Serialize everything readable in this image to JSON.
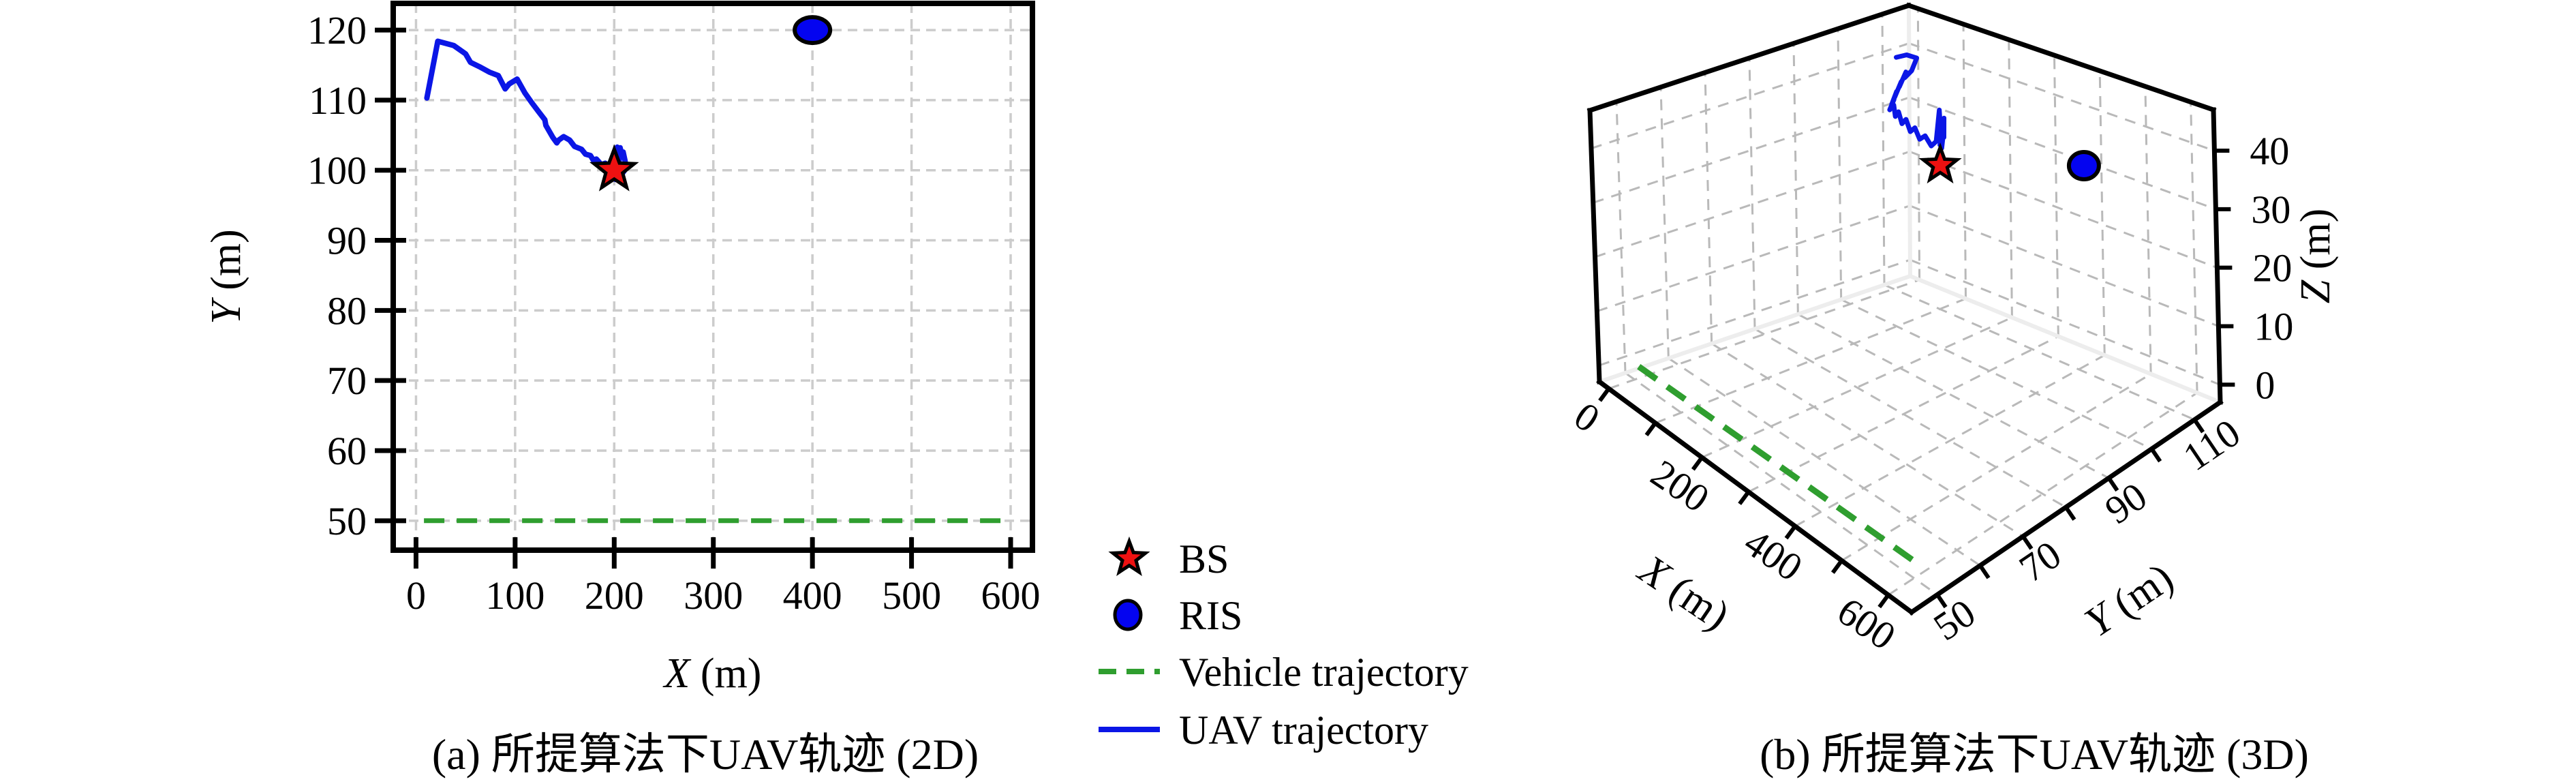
{
  "figure": {
    "background": "#ffffff",
    "caption_a": "(a) 所提算法下UAV轨迹 (2D)",
    "caption_b": "(b) 所提算法下UAV轨迹 (3D)"
  },
  "colors": {
    "bs_fill": "#ee1111",
    "ris_fill": "#0404f0",
    "uav_line": "#0b16e6",
    "vehicle_line": "#2f9e2f",
    "marker_edge": "#000000",
    "axis": "#000000",
    "grid2d": "#cccccc",
    "grid3d": "#b9b9b9",
    "pane_edge": "#ededed"
  },
  "legend": {
    "items": [
      {
        "id": "bs",
        "label": "BS",
        "marker": "star"
      },
      {
        "id": "ris",
        "label": "RIS",
        "marker": "ellipse"
      },
      {
        "id": "vehicle",
        "label": "Vehicle trajectory",
        "marker": "dashed-line"
      },
      {
        "id": "uav",
        "label": "UAV trajectory",
        "marker": "solid-line"
      }
    ]
  },
  "chart_data": [
    {
      "id": "plot2d",
      "type": "line",
      "xlabel": "X (m)",
      "ylabel": "Y (m)",
      "xlim": [
        -23,
        622
      ],
      "ylim": [
        45.8,
        123.8
      ],
      "xticks": [
        0,
        100,
        200,
        300,
        400,
        500,
        600
      ],
      "yticks": [
        50,
        60,
        70,
        80,
        90,
        100,
        110,
        120
      ],
      "grid": true,
      "legend_position": "outside-right",
      "series": [
        {
          "name": "UAV trajectory",
          "style": "solid",
          "color_key": "uav_line",
          "points": [
            [
              11,
              110.3
            ],
            [
              22,
              118.4
            ],
            [
              38,
              117.8
            ],
            [
              50,
              116.6
            ],
            [
              55,
              115.4
            ],
            [
              65,
              114.7
            ],
            [
              74,
              114.0
            ],
            [
              83,
              113.5
            ],
            [
              90,
              111.6
            ],
            [
              94,
              112.3
            ],
            [
              102,
              113.0
            ],
            [
              110,
              111.0
            ],
            [
              117,
              109.6
            ],
            [
              124,
              108.3
            ],
            [
              130,
              107.2
            ],
            [
              131,
              106.4
            ],
            [
              138,
              104.7
            ],
            [
              142,
              103.9
            ],
            [
              144,
              104.3
            ],
            [
              149,
              104.8
            ],
            [
              155,
              104.3
            ],
            [
              160,
              103.4
            ],
            [
              167,
              103.0
            ],
            [
              171,
              102.3
            ],
            [
              176,
              102.1
            ],
            [
              179,
              101.4
            ],
            [
              182,
              101.6
            ],
            [
              187,
              100.8
            ],
            [
              191,
              101.0
            ],
            [
              194,
              100.1
            ],
            [
              198,
              100.5
            ],
            [
              199,
              101.4
            ],
            [
              200,
              99.9
            ],
            [
              201,
              102.8
            ],
            [
              203,
              103.3
            ],
            [
              205,
              101.4
            ],
            [
              206,
              103.2
            ],
            [
              208,
              102.0
            ],
            [
              209,
              102.6
            ],
            [
              211,
              101.3
            ],
            [
              211,
              100.1
            ],
            [
              208,
              99.5
            ],
            [
              205,
              99.2
            ],
            [
              202,
              99.7
            ],
            [
              201,
              98.7
            ]
          ]
        },
        {
          "name": "Vehicle trajectory",
          "style": "dashed",
          "color_key": "vehicle_line",
          "points": [
            [
              8,
              50
            ],
            [
              602,
              50
            ]
          ]
        }
      ],
      "markers": [
        {
          "name": "BS",
          "shape": "star",
          "x": 200,
          "y": 100
        },
        {
          "name": "RIS",
          "shape": "ellipse",
          "x": 400,
          "y": 120
        }
      ]
    },
    {
      "id": "plot3d",
      "type": "line3d",
      "xlabel": "X (m)",
      "ylabel": "Y (m)",
      "zlabel": "Z (m)",
      "xlim": [
        -20,
        650
      ],
      "ylim": [
        44,
        116
      ],
      "zlim": [
        -3,
        47
      ],
      "xticks": [
        0,
        100,
        200,
        300,
        400,
        500,
        600
      ],
      "xtick_labels": [
        0,
        200,
        400,
        600
      ],
      "yticks": [
        50,
        60,
        70,
        80,
        90,
        100,
        110
      ],
      "ytick_labels": [
        50,
        70,
        90,
        110
      ],
      "zticks": [
        0,
        10,
        20,
        30,
        40
      ],
      "ztick_labels": [
        0,
        10,
        20,
        30,
        40
      ],
      "grid": true,
      "series": [
        {
          "name": "UAV trajectory",
          "style": "solid",
          "color_key": "uav_line",
          "points": [
            [
              10,
              110,
              40
            ],
            [
              30,
              110.3,
              41
            ],
            [
              55,
              110,
              41.3
            ],
            [
              58,
              108.5,
              39.5
            ],
            [
              52,
              107.5,
              38.3
            ],
            [
              60,
              107,
              39.8
            ],
            [
              55,
              106,
              37.2
            ],
            [
              64,
              105.5,
              38.6
            ],
            [
              58,
              104.6,
              35.8
            ],
            [
              68,
              104,
              37.4
            ],
            [
              62,
              103.5,
              35
            ],
            [
              72,
              103,
              36.4
            ],
            [
              66,
              102.6,
              34.4
            ],
            [
              78,
              102.3,
              35.8
            ],
            [
              84,
              102,
              34
            ],
            [
              94,
              101.7,
              35.3
            ],
            [
              104,
              101.4,
              33.6
            ],
            [
              116,
              101.1,
              34.9
            ],
            [
              128,
              100.8,
              33.2
            ],
            [
              140,
              100.6,
              34.4
            ],
            [
              152,
              100.4,
              32.8
            ],
            [
              166,
              100.2,
              34
            ],
            [
              180,
              100.1,
              32.7
            ],
            [
              192,
              100,
              34
            ],
            [
              198,
              100.2,
              39.8
            ],
            [
              203,
              99.9,
              36.4
            ],
            [
              207,
              100.3,
              38.6
            ],
            [
              210,
              99.9,
              35.4
            ],
            [
              205,
              99.7,
              37.6
            ],
            [
              200,
              100,
              34.6
            ],
            [
              206,
              100.2,
              36.8
            ],
            [
              202,
              99.8,
              33.8
            ],
            [
              208,
              100,
              36
            ],
            [
              204,
              100,
              33.2
            ],
            [
              198,
              99.9,
              35
            ]
          ]
        },
        {
          "name": "Vehicle trajectory",
          "style": "dashed",
          "color_key": "vehicle_line",
          "points": [
            [
              10,
              50,
              0
            ],
            [
              600,
              50,
              0
            ]
          ]
        }
      ],
      "markers": [
        {
          "name": "BS",
          "shape": "star",
          "x": 200,
          "y": 100,
          "z": 30
        },
        {
          "name": "RIS",
          "shape": "ellipse",
          "x": 400,
          "y": 112,
          "z": 32
        }
      ]
    }
  ]
}
